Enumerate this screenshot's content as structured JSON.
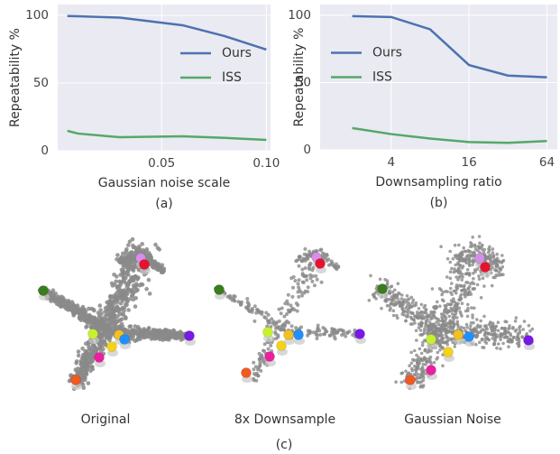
{
  "chart_data": [
    {
      "type": "line",
      "x_label": "Gaussian noise scale",
      "y_label": "Repeatability %",
      "caption": "(a)",
      "x": [
        0.005,
        0.01,
        0.03,
        0.06,
        0.08,
        0.1
      ],
      "series": [
        {
          "name": "Ours",
          "color": "#4c72b0",
          "values": [
            99.5,
            99.3,
            98.3,
            92.7,
            84.7,
            74.7
          ]
        },
        {
          "name": "ISS",
          "color": "#55a868",
          "values": [
            14.7,
            12.7,
            10.0,
            10.7,
            9.5,
            8.0
          ]
        }
      ],
      "xlim": [
        0.0004,
        0.102
      ],
      "ylim": [
        0,
        108
      ],
      "xticks": [
        0.05,
        {
          "value": 0.1,
          "label": "0.10"
        }
      ],
      "yticks": [
        0,
        50,
        100
      ],
      "legend": "center right",
      "grid": true
    },
    {
      "type": "line",
      "x_label": "Downsampling ratio",
      "y_label": "Repeatability %",
      "caption": "(b)",
      "x": [
        2,
        4,
        8,
        16,
        32,
        64
      ],
      "series": [
        {
          "name": "Ours",
          "color": "#4c72b0",
          "values": [
            99.4,
            98.7,
            89.6,
            63.0,
            55.2,
            53.9
          ]
        },
        {
          "name": "ISS",
          "color": "#55a868",
          "values": [
            16.2,
            11.7,
            8.4,
            5.8,
            5.2,
            6.5
          ]
        }
      ],
      "xlim": [
        1.13,
        77
      ],
      "ylim": [
        0,
        108
      ],
      "xticks": [
        4,
        16,
        64
      ],
      "yticks": [
        0,
        50,
        100
      ],
      "log_x": true,
      "legend": "center left",
      "grid": true
    }
  ],
  "panel_c": {
    "captions": [
      "Original",
      "8x Downsample",
      "Gaussian Noise"
    ],
    "label": "(c)"
  }
}
